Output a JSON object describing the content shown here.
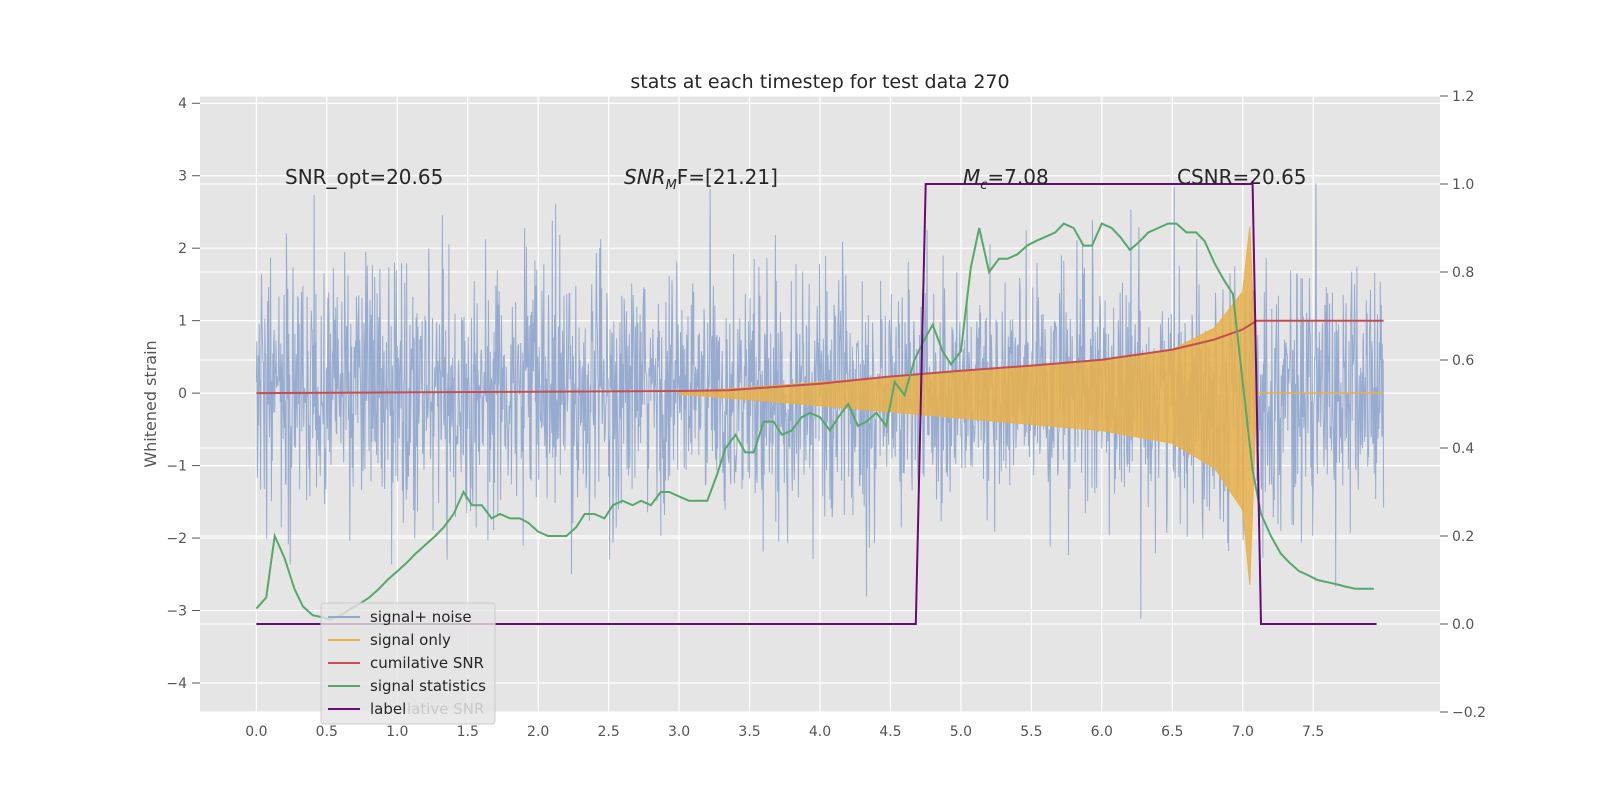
{
  "chart_data": {
    "type": "line",
    "title": "stats at each timestep for test data 270",
    "xlabel": "",
    "ylabel": "Whitened strain",
    "ylim": [
      -4.4,
      4.1
    ],
    "y2lim": [
      -0.2,
      1.2
    ],
    "xlim": [
      -0.4,
      8.4
    ],
    "x_ticks": [
      "0.0",
      "0.5",
      "1.0",
      "1.5",
      "2.0",
      "2.5",
      "3.0",
      "3.5",
      "4.0",
      "4.5",
      "5.0",
      "5.5",
      "6.0",
      "6.5",
      "7.0",
      "7.5"
    ],
    "y_ticks": [
      "−4",
      "−3",
      "−2",
      "−1",
      "0",
      "1",
      "2",
      "3",
      "4"
    ],
    "y2_ticks": [
      "−0.2",
      "0.0",
      "0.2",
      "0.4",
      "0.6",
      "0.8",
      "1.0",
      "1.2"
    ],
    "grid": true,
    "annotations": {
      "snr_opt": "SNR_opt=20.65",
      "snr_mf_base": "SNR",
      "snr_mf_sub": "M",
      "snr_mf_rest": "F=[21.21]",
      "mc_base": "M",
      "mc_sub": "c",
      "mc_rest": "=7.08",
      "csnr": "CSNR=20.65"
    },
    "legend": {
      "placement": "bottom-left",
      "entries": [
        "signal+ noise",
        "signal only",
        "cumilative SNR",
        "signal statistics",
        "label"
      ],
      "ghost_text": "lative SNR"
    },
    "series": [
      {
        "name": "signal+ noise",
        "axis": "left",
        "color": "#92a8cf",
        "amplitude_std": 0.85,
        "t_start": 0.0,
        "t_end": 8.0
      },
      {
        "name": "signal only",
        "axis": "left",
        "color": "#e8b04a",
        "envelope_t": [
          3.0,
          4.0,
          5.0,
          6.0,
          6.5,
          6.8,
          7.0,
          7.05,
          7.1
        ],
        "envelope_amp": [
          0.01,
          0.15,
          0.3,
          0.45,
          0.6,
          0.9,
          1.4,
          2.3,
          0.0
        ]
      },
      {
        "name": "cumilative SNR",
        "axis": "left",
        "color": "#c44e52",
        "t": [
          0.0,
          1.0,
          2.0,
          3.0,
          3.35,
          4.0,
          4.5,
          5.0,
          5.5,
          6.0,
          6.5,
          6.8,
          7.0,
          7.1,
          8.0
        ],
        "values": [
          0.0,
          0.01,
          0.02,
          0.03,
          0.04,
          0.13,
          0.23,
          0.31,
          0.38,
          0.46,
          0.6,
          0.74,
          0.88,
          1.0,
          1.0
        ]
      },
      {
        "name": "signal statistics",
        "axis": "right",
        "color": "#55a868",
        "t": [
          0.0,
          0.07,
          0.13,
          0.2,
          0.27,
          0.33,
          0.4,
          0.47,
          0.53,
          0.6,
          0.67,
          0.73,
          0.8,
          0.87,
          0.93,
          1.0,
          1.07,
          1.13,
          1.2,
          1.27,
          1.33,
          1.4,
          1.47,
          1.53,
          1.6,
          1.67,
          1.73,
          1.8,
          1.87,
          1.93,
          2.0,
          2.07,
          2.13,
          2.2,
          2.27,
          2.33,
          2.4,
          2.47,
          2.53,
          2.6,
          2.67,
          2.73,
          2.8,
          2.87,
          2.93,
          3.0,
          3.07,
          3.13,
          3.2,
          3.27,
          3.33,
          3.4,
          3.47,
          3.53,
          3.6,
          3.67,
          3.73,
          3.8,
          3.87,
          3.93,
          4.0,
          4.07,
          4.13,
          4.2,
          4.27,
          4.33,
          4.4,
          4.47,
          4.53,
          4.6,
          4.67,
          4.73,
          4.8,
          4.87,
          4.93,
          5.0,
          5.07,
          5.13,
          5.2,
          5.27,
          5.33,
          5.4,
          5.47,
          5.53,
          5.6,
          5.67,
          5.73,
          5.8,
          5.87,
          5.93,
          6.0,
          6.07,
          6.13,
          6.2,
          6.27,
          6.33,
          6.4,
          6.47,
          6.53,
          6.6,
          6.67,
          6.73,
          6.8,
          6.87,
          6.93,
          7.0,
          7.07,
          7.13,
          7.2,
          7.27,
          7.33,
          7.4,
          7.47,
          7.53,
          7.6,
          7.67,
          7.73,
          7.8,
          7.87,
          7.93
        ],
        "values": [
          0.035,
          0.06,
          0.2,
          0.15,
          0.08,
          0.04,
          0.02,
          0.015,
          0.01,
          0.02,
          0.035,
          0.045,
          0.06,
          0.08,
          0.1,
          0.12,
          0.14,
          0.16,
          0.18,
          0.2,
          0.22,
          0.25,
          0.3,
          0.27,
          0.27,
          0.24,
          0.25,
          0.24,
          0.24,
          0.23,
          0.21,
          0.2,
          0.2,
          0.2,
          0.22,
          0.25,
          0.25,
          0.24,
          0.27,
          0.28,
          0.27,
          0.28,
          0.27,
          0.3,
          0.3,
          0.29,
          0.28,
          0.28,
          0.28,
          0.34,
          0.4,
          0.43,
          0.39,
          0.39,
          0.46,
          0.46,
          0.43,
          0.44,
          0.47,
          0.48,
          0.47,
          0.44,
          0.47,
          0.5,
          0.45,
          0.46,
          0.48,
          0.45,
          0.55,
          0.52,
          0.6,
          0.64,
          0.68,
          0.62,
          0.59,
          0.62,
          0.81,
          0.9,
          0.8,
          0.83,
          0.83,
          0.84,
          0.86,
          0.87,
          0.88,
          0.89,
          0.91,
          0.9,
          0.86,
          0.86,
          0.91,
          0.9,
          0.88,
          0.85,
          0.87,
          0.89,
          0.9,
          0.91,
          0.91,
          0.89,
          0.89,
          0.87,
          0.82,
          0.78,
          0.75,
          0.55,
          0.35,
          0.25,
          0.2,
          0.16,
          0.14,
          0.12,
          0.11,
          0.1,
          0.095,
          0.09,
          0.085,
          0.08,
          0.08,
          0.08
        ]
      },
      {
        "name": "label",
        "axis": "right",
        "color": "#6a0a75",
        "t": [
          0.0,
          4.68,
          4.75,
          7.07,
          7.13,
          7.95
        ],
        "values": [
          0.0,
          0.0,
          1.0,
          1.0,
          0.0,
          0.0
        ]
      }
    ]
  }
}
